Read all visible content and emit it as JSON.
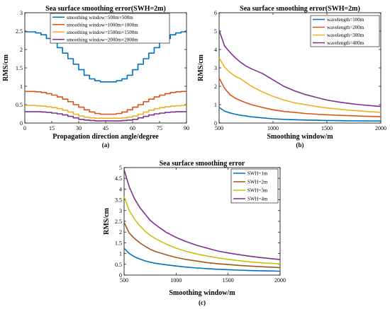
{
  "chart_data": [
    {
      "type": "line",
      "panel_label": "(a)",
      "title": "Sea surface smoothing error(SWH=2m)",
      "xlabel": "Propagation direction angle/degree",
      "ylabel": "RMS/cm",
      "xlim": [
        0,
        90
      ],
      "ylim": [
        0,
        3
      ],
      "xticks": [
        0,
        15,
        30,
        45,
        60,
        75,
        90
      ],
      "yticks": [
        0,
        0.5,
        1,
        1.5,
        2,
        2.5,
        3
      ],
      "grid": false,
      "legend_position": "top-right",
      "step": true,
      "x": [
        0,
        3,
        6,
        9,
        12,
        15,
        18,
        21,
        24,
        27,
        30,
        33,
        36,
        39,
        42,
        45,
        48,
        51,
        54,
        57,
        60,
        63,
        66,
        69,
        72,
        75,
        78,
        81,
        84,
        87,
        90
      ],
      "series": [
        {
          "name": "smoothing window=500m×500m",
          "color": "#0072BD",
          "values": [
            2.48,
            2.48,
            2.45,
            2.4,
            2.3,
            2.2,
            2.05,
            1.9,
            1.75,
            1.6,
            1.45,
            1.3,
            1.2,
            1.15,
            1.12,
            1.12,
            1.12,
            1.15,
            1.2,
            1.3,
            1.45,
            1.6,
            1.75,
            1.9,
            2.05,
            2.2,
            2.3,
            2.4,
            2.45,
            2.48,
            2.48
          ]
        },
        {
          "name": "smoothing window=1000m×1000m",
          "color": "#D95319",
          "values": [
            0.86,
            0.86,
            0.85,
            0.83,
            0.8,
            0.76,
            0.71,
            0.65,
            0.58,
            0.5,
            0.43,
            0.36,
            0.3,
            0.26,
            0.24,
            0.24,
            0.24,
            0.26,
            0.3,
            0.36,
            0.43,
            0.5,
            0.58,
            0.65,
            0.71,
            0.76,
            0.8,
            0.83,
            0.85,
            0.86,
            0.86
          ]
        },
        {
          "name": "smoothing window=1500m×1500m",
          "color": "#EDB120",
          "values": [
            0.48,
            0.48,
            0.47,
            0.46,
            0.44,
            0.42,
            0.39,
            0.35,
            0.3,
            0.24,
            0.19,
            0.16,
            0.14,
            0.13,
            0.13,
            0.13,
            0.13,
            0.13,
            0.14,
            0.16,
            0.19,
            0.24,
            0.3,
            0.35,
            0.39,
            0.42,
            0.44,
            0.46,
            0.47,
            0.48,
            0.48
          ]
        },
        {
          "name": "smoothing window=2000m×2000m",
          "color": "#7E2F8E",
          "values": [
            0.31,
            0.31,
            0.31,
            0.3,
            0.29,
            0.27,
            0.25,
            0.22,
            0.18,
            0.14,
            0.1,
            0.08,
            0.07,
            0.06,
            0.06,
            0.06,
            0.06,
            0.06,
            0.07,
            0.08,
            0.1,
            0.14,
            0.18,
            0.22,
            0.25,
            0.27,
            0.29,
            0.3,
            0.31,
            0.31,
            0.31
          ]
        }
      ]
    },
    {
      "type": "line",
      "panel_label": "(b)",
      "title": "Sea surface smoothing error(SWH=2m)",
      "xlabel": "Smoothing window/m",
      "ylabel": "RMS/cm",
      "xlim": [
        500,
        2000
      ],
      "ylim": [
        0,
        6
      ],
      "xticks": [
        500,
        1000,
        1500,
        2000
      ],
      "yticks": [
        0,
        1,
        2,
        3,
        4,
        5,
        6
      ],
      "grid": false,
      "legend_position": "top-right",
      "x": [
        500,
        550,
        600,
        650,
        700,
        750,
        800,
        900,
        1000,
        1100,
        1200,
        1300,
        1400,
        1500,
        1600,
        1700,
        1800,
        1900,
        2000
      ],
      "series": [
        {
          "name": "wavelength=100m",
          "color": "#0072BD",
          "values": [
            0.85,
            0.65,
            0.55,
            0.48,
            0.42,
            0.38,
            0.34,
            0.28,
            0.23,
            0.2,
            0.18,
            0.16,
            0.15,
            0.14,
            0.13,
            0.12,
            0.12,
            0.11,
            0.11
          ]
        },
        {
          "name": "wavelength=200m",
          "color": "#D95319",
          "values": [
            2.45,
            1.9,
            1.55,
            1.35,
            1.22,
            1.1,
            1.0,
            0.85,
            0.72,
            0.63,
            0.58,
            0.52,
            0.48,
            0.45,
            0.42,
            0.4,
            0.38,
            0.36,
            0.35
          ]
        },
        {
          "name": "wavelength=300m",
          "color": "#EDB120",
          "values": [
            3.55,
            3.05,
            2.75,
            2.55,
            2.4,
            2.2,
            2.0,
            1.7,
            1.45,
            1.25,
            1.1,
            1.0,
            0.9,
            0.82,
            0.76,
            0.7,
            0.66,
            0.62,
            0.58
          ]
        },
        {
          "name": "wavelength=400m",
          "color": "#7E2F8E",
          "values": [
            5.05,
            4.2,
            3.85,
            3.55,
            3.3,
            3.1,
            2.95,
            2.7,
            2.35,
            2.0,
            1.75,
            1.55,
            1.4,
            1.25,
            1.15,
            1.07,
            1.0,
            0.95,
            0.9
          ]
        }
      ]
    },
    {
      "type": "line",
      "panel_label": "(c)",
      "title": "Sea surface smoothing error",
      "xlabel": "Smoothing window/m",
      "ylabel": "RMS/cm",
      "xlim": [
        500,
        2000
      ],
      "ylim": [
        0,
        5
      ],
      "xticks": [
        500,
        1000,
        1500,
        2000
      ],
      "yticks": [
        0,
        0.5,
        1,
        1.5,
        2,
        2.5,
        3,
        3.5,
        4,
        4.5,
        5
      ],
      "grid": false,
      "legend_position": "top-right",
      "x": [
        500,
        550,
        600,
        650,
        700,
        750,
        800,
        900,
        1000,
        1100,
        1200,
        1300,
        1400,
        1500,
        1600,
        1700,
        1800,
        1900,
        2000
      ],
      "series": [
        {
          "name": "SWH=1m",
          "color": "#0072BD",
          "values": [
            1.25,
            1.0,
            0.85,
            0.75,
            0.66,
            0.6,
            0.55,
            0.48,
            0.42,
            0.37,
            0.33,
            0.3,
            0.27,
            0.25,
            0.23,
            0.21,
            0.2,
            0.19,
            0.18
          ]
        },
        {
          "name": "SWH=2m",
          "color": "#A2571A",
          "values": [
            2.45,
            1.95,
            1.7,
            1.5,
            1.35,
            1.2,
            1.1,
            0.95,
            0.82,
            0.72,
            0.65,
            0.58,
            0.53,
            0.49,
            0.45,
            0.42,
            0.39,
            0.37,
            0.35
          ]
        },
        {
          "name": "SWH=3m",
          "color": "#C8C010",
          "values": [
            3.65,
            3.0,
            2.6,
            2.3,
            2.05,
            1.85,
            1.7,
            1.45,
            1.25,
            1.1,
            0.98,
            0.88,
            0.8,
            0.73,
            0.67,
            0.62,
            0.58,
            0.55,
            0.52
          ]
        },
        {
          "name": "SWH=4m",
          "color": "#7E2F8E",
          "values": [
            4.9,
            4.1,
            3.55,
            3.15,
            2.85,
            2.55,
            2.35,
            2.0,
            1.75,
            1.55,
            1.38,
            1.25,
            1.12,
            1.03,
            0.95,
            0.88,
            0.82,
            0.77,
            0.72
          ]
        }
      ]
    }
  ]
}
